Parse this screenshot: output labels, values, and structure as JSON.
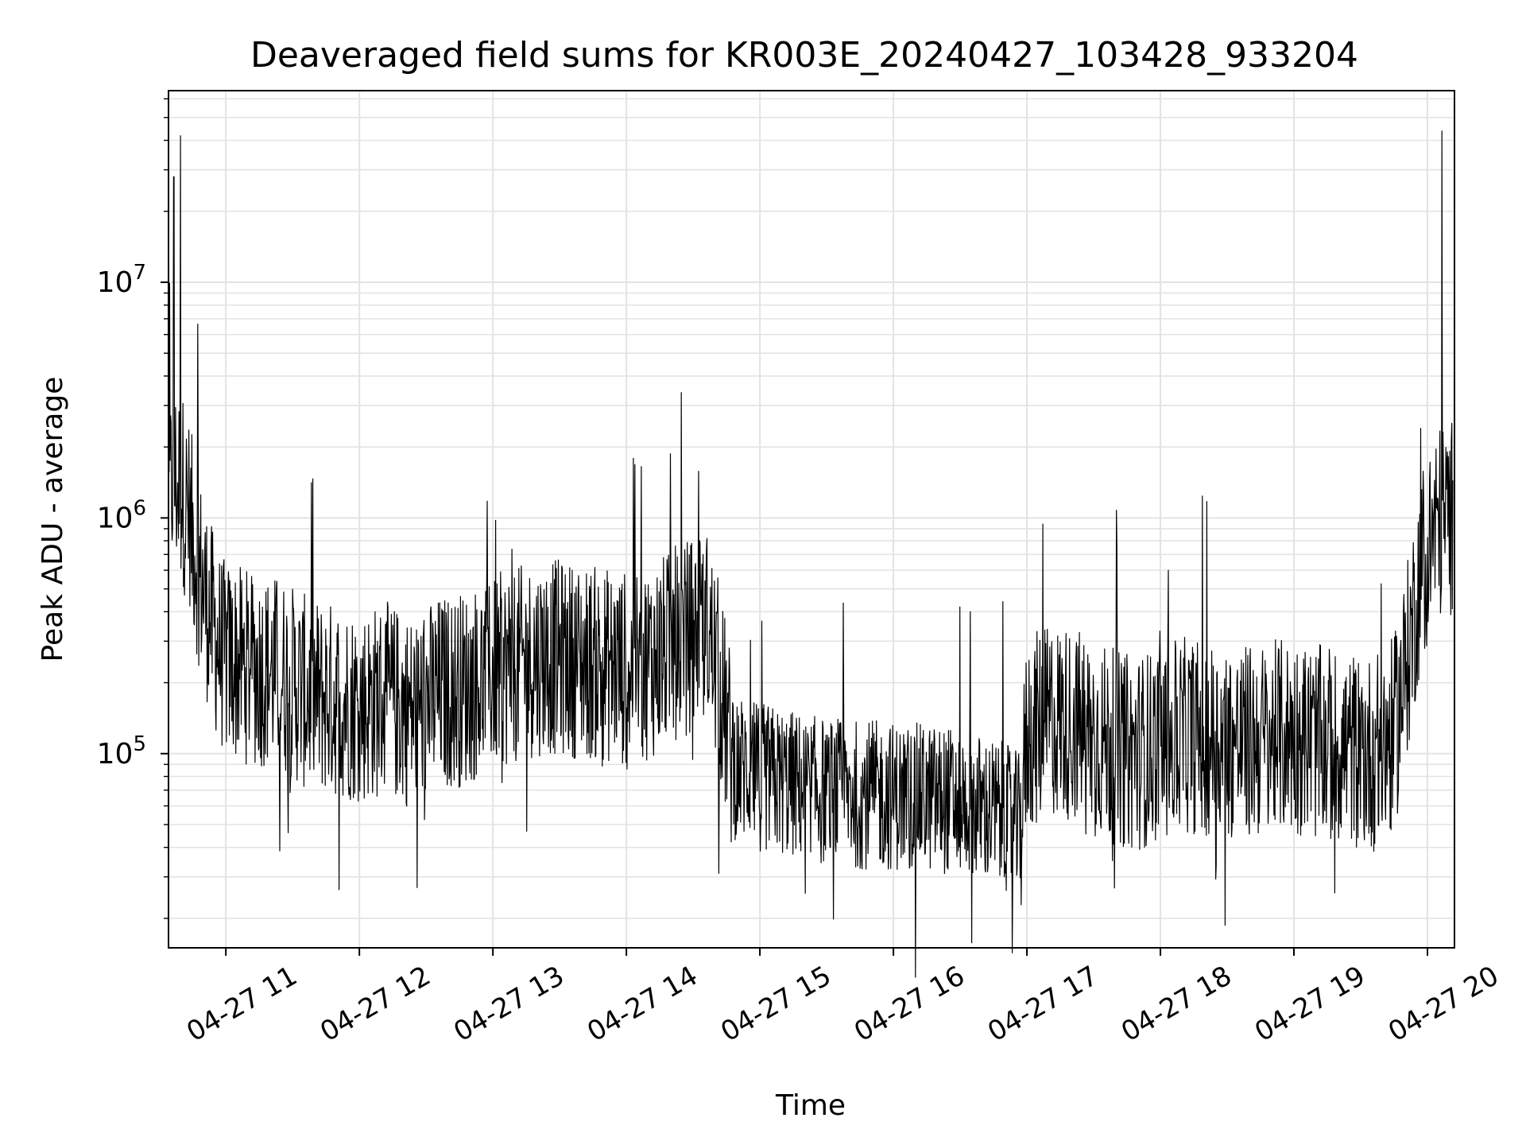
{
  "chart_data": {
    "type": "line",
    "title": "Deaveraged field sums for KR003E_20240427_103428_933204",
    "xlabel": "Time",
    "ylabel": "Peak ADU - average",
    "x_tick_labels": [
      "04-27 11",
      "04-27 12",
      "04-27 13",
      "04-27 14",
      "04-27 15",
      "04-27 16",
      "04-27 17",
      "04-27 18",
      "04-27 19",
      "04-27 20"
    ],
    "x_tick_hours": [
      11,
      12,
      13,
      14,
      15,
      16,
      17,
      18,
      19,
      20
    ],
    "y_tick_exponents": [
      5,
      6,
      7
    ],
    "y_tick_base": "10",
    "y_scale": "log",
    "xlim": [
      "2024-04-27 10:34",
      "2024-04-27 20:12"
    ],
    "ylim": [
      15000,
      65000000
    ],
    "grid": true,
    "line_color": "#000000",
    "series": [
      {
        "x_hours": [
          10.57,
          10.6,
          10.64,
          10.68,
          10.72,
          10.76,
          10.8,
          10.85,
          10.9,
          10.95,
          11.0,
          11.2,
          11.4,
          11.6,
          11.8,
          12.0,
          12.2,
          12.4,
          12.6,
          12.8,
          13.0,
          13.2,
          13.4,
          13.6,
          13.8,
          14.0,
          14.2,
          14.4,
          14.6,
          14.7,
          14.8,
          15.0,
          15.2,
          15.4,
          15.6,
          15.8,
          16.0,
          16.2,
          16.4,
          16.6,
          16.8,
          16.95,
          17.0,
          17.2,
          17.4,
          17.6,
          17.8,
          18.0,
          18.2,
          18.4,
          18.6,
          18.8,
          19.0,
          19.2,
          19.4,
          19.6,
          19.75,
          19.85,
          19.95,
          20.05,
          20.12
        ],
        "values": [
          1100000,
          1500000,
          1400000,
          1300000,
          1000000,
          800000,
          600000,
          450000,
          350000,
          280000,
          250000,
          230000,
          220000,
          180000,
          170000,
          160000,
          170000,
          150000,
          180000,
          190000,
          220000,
          240000,
          260000,
          250000,
          240000,
          230000,
          250000,
          300000,
          350000,
          200000,
          90000,
          80000,
          75000,
          70000,
          68000,
          67000,
          66000,
          65000,
          64000,
          60000,
          55000,
          48000,
          120000,
          140000,
          130000,
          110000,
          100000,
          110000,
          120000,
          115000,
          110000,
          115000,
          120000,
          110000,
          105000,
          100000,
          120000,
          250000,
          600000,
          900000,
          1000000
        ],
        "peaks": [
          {
            "x_hour": 10.61,
            "value": 28000000
          },
          {
            "x_hour": 10.66,
            "value": 42000000
          },
          {
            "x_hour": 20.11,
            "value": 44000000
          }
        ]
      }
    ]
  }
}
